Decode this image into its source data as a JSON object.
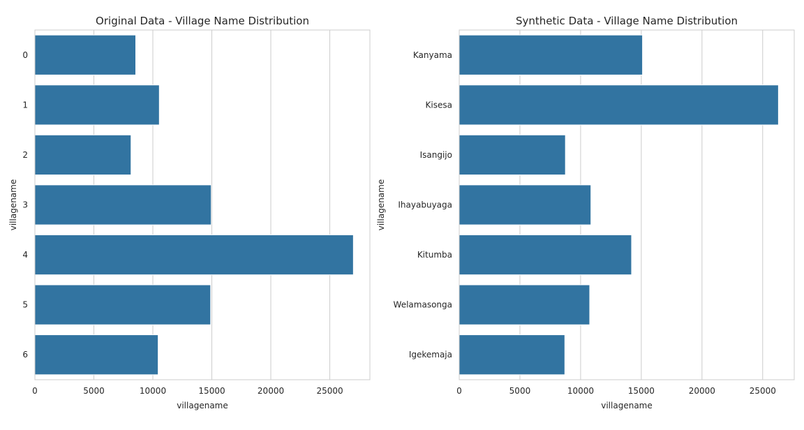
{
  "chart_data": [
    {
      "type": "bar",
      "orientation": "horizontal",
      "title": "Original Data - Village Name Distribution",
      "xlabel": "villagename",
      "ylabel": "villagename",
      "categories": [
        "0",
        "1",
        "2",
        "3",
        "4",
        "5",
        "6"
      ],
      "values": [
        8550,
        10550,
        8150,
        14950,
        27000,
        14900,
        10450
      ],
      "xlim": [
        0,
        28400
      ],
      "xticks": [
        0,
        5000,
        10000,
        15000,
        20000,
        25000
      ],
      "grid": "x",
      "color": "#3274a1"
    },
    {
      "type": "bar",
      "orientation": "horizontal",
      "title": "Synthetic Data - Village Name Distribution",
      "xlabel": "villagename",
      "ylabel": "villagename",
      "categories": [
        "Kanyama",
        "Kisesa",
        "Isangijo",
        "Ihayabuyaga",
        "Kitumba",
        "Welamasonga",
        "Igekemaja"
      ],
      "values": [
        15100,
        26300,
        8750,
        10850,
        14200,
        10750,
        8700
      ],
      "xlim": [
        0,
        27600
      ],
      "xticks": [
        0,
        5000,
        10000,
        15000,
        20000,
        25000
      ],
      "grid": "x",
      "color": "#3274a1"
    }
  ]
}
